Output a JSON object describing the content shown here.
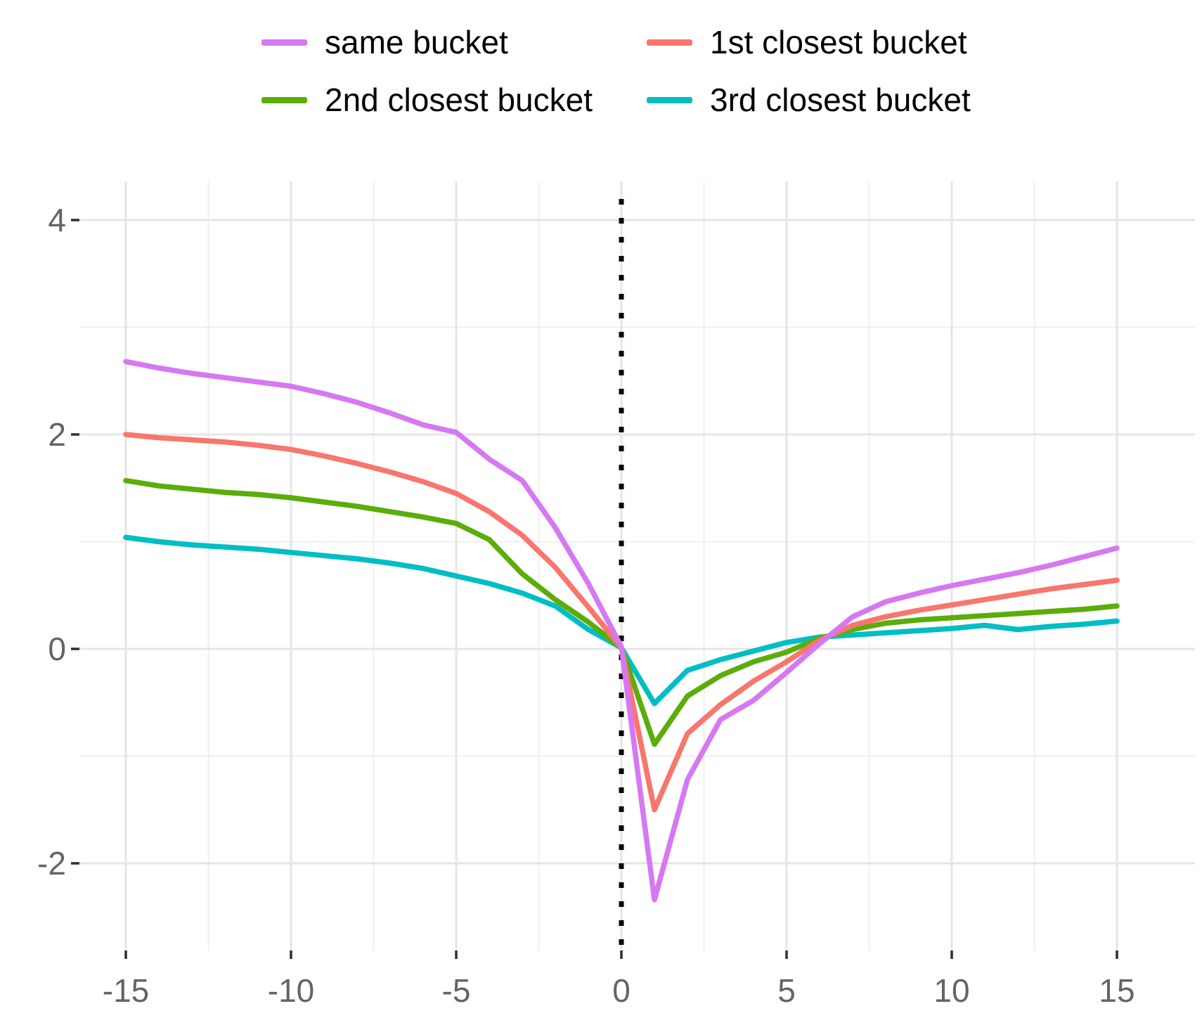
{
  "chart_data": {
    "type": "line",
    "title": "",
    "xlabel": "",
    "ylabel": "",
    "grid": true,
    "legend_position": "top",
    "background": "#ffffff",
    "gridline_major_color": "#e5e5e5",
    "gridline_minor_color": "#efefef",
    "axis_text_color": "#646464",
    "tick_mark_color": "#2e2e2e",
    "reference_line": {
      "x": 0,
      "style": "dotted",
      "color": "#000000"
    },
    "xlim": [
      -16.4,
      17.35
    ],
    "ylim": [
      -2.81,
      4.36
    ],
    "x_ticks": [
      -15,
      -10,
      -5,
      0,
      5,
      10,
      15
    ],
    "y_ticks": [
      -2,
      0,
      2,
      4
    ],
    "x_tick_labels": [
      "-15",
      "-10",
      "-5",
      "0",
      "5",
      "10",
      "15"
    ],
    "y_tick_labels": [
      "-2",
      "0",
      "2",
      "4"
    ],
    "x_minor_ticks": [
      -12.5,
      -7.5,
      -2.5,
      2.5,
      7.5,
      12.5
    ],
    "y_minor_ticks": [
      -1,
      1,
      3
    ],
    "x": [
      -15,
      -14,
      -13,
      -12,
      -11,
      -10,
      -9,
      -8,
      -7,
      -6,
      -5,
      -4,
      -3,
      -2,
      -1,
      0,
      1,
      2,
      3,
      4,
      5,
      6,
      7,
      8,
      9,
      10,
      11,
      12,
      13,
      14,
      15
    ],
    "series": [
      {
        "name": "same bucket",
        "color": "#D678F2",
        "values": [
          2.68,
          2.62,
          2.57,
          2.53,
          2.49,
          2.45,
          2.38,
          2.3,
          2.2,
          2.09,
          2.02,
          1.77,
          1.57,
          1.13,
          0.61,
          0.02,
          -2.34,
          -1.22,
          -0.66,
          -0.48,
          -0.22,
          0.05,
          0.3,
          0.44,
          0.52,
          0.59,
          0.65,
          0.71,
          0.78,
          0.86,
          0.94
        ]
      },
      {
        "name": "1st closest bucket",
        "color": "#F8766D",
        "values": [
          2.0,
          1.97,
          1.95,
          1.93,
          1.9,
          1.86,
          1.8,
          1.73,
          1.65,
          1.56,
          1.45,
          1.28,
          1.06,
          0.76,
          0.39,
          0.01,
          -1.5,
          -0.79,
          -0.52,
          -0.3,
          -0.12,
          0.08,
          0.22,
          0.3,
          0.36,
          0.41,
          0.46,
          0.51,
          0.56,
          0.6,
          0.64
        ]
      },
      {
        "name": "2nd closest bucket",
        "color": "#5BAD0A",
        "values": [
          1.57,
          1.52,
          1.49,
          1.46,
          1.44,
          1.41,
          1.37,
          1.33,
          1.28,
          1.23,
          1.17,
          1.02,
          0.7,
          0.46,
          0.25,
          0.01,
          -0.89,
          -0.44,
          -0.25,
          -0.12,
          -0.03,
          0.1,
          0.18,
          0.24,
          0.27,
          0.29,
          0.31,
          0.33,
          0.35,
          0.37,
          0.4
        ]
      },
      {
        "name": "3rd closest bucket",
        "color": "#00BEC4",
        "values": [
          1.04,
          1.0,
          0.97,
          0.95,
          0.93,
          0.9,
          0.87,
          0.84,
          0.8,
          0.75,
          0.68,
          0.61,
          0.52,
          0.4,
          0.18,
          0.01,
          -0.51,
          -0.2,
          -0.1,
          -0.02,
          0.06,
          0.11,
          0.13,
          0.15,
          0.17,
          0.19,
          0.22,
          0.18,
          0.21,
          0.23,
          0.26
        ]
      }
    ]
  },
  "legend": {
    "items": [
      {
        "label": "same bucket",
        "color": "#D678F2"
      },
      {
        "label": "1st closest bucket",
        "color": "#F8766D"
      },
      {
        "label": "2nd closest bucket",
        "color": "#5BAD0A"
      },
      {
        "label": "3rd closest bucket",
        "color": "#00BEC4"
      }
    ]
  }
}
